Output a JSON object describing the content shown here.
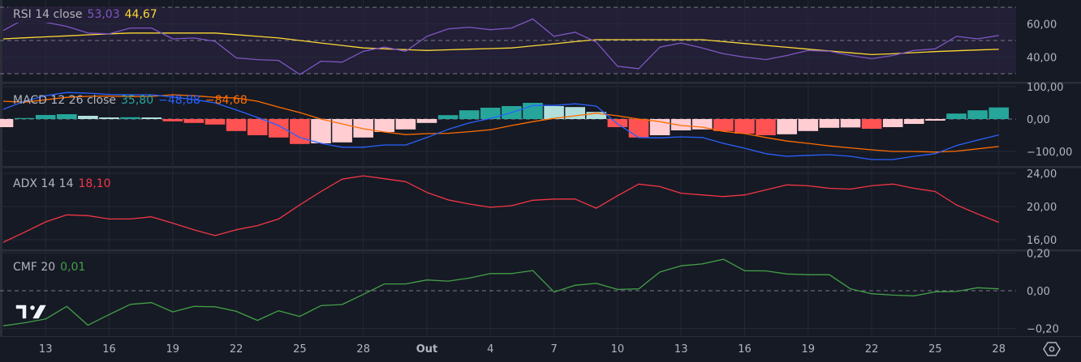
{
  "colors": {
    "background": "#161a25",
    "rsi_band": "#221f36",
    "rsi": "#7e57c2",
    "rsi_ma": "#fdd835",
    "macd": "#2962ff",
    "signal": "#ff6d00",
    "hist_up_strong": "#26a69a",
    "hist_up_weak": "#b2dfdb",
    "hist_down_strong": "#ff5252",
    "hist_down_weak": "#ffcdd2",
    "adx": "#f23645",
    "cmf": "#43a047"
  },
  "x_ticks": [
    {
      "label": "13",
      "index": 2
    },
    {
      "label": "16",
      "index": 5
    },
    {
      "label": "19",
      "index": 8
    },
    {
      "label": "22",
      "index": 11
    },
    {
      "label": "25",
      "index": 14
    },
    {
      "label": "28",
      "index": 17
    },
    {
      "label": "Out",
      "index": 20,
      "bold": true
    },
    {
      "label": "4",
      "index": 23
    },
    {
      "label": "7",
      "index": 26
    },
    {
      "label": "10",
      "index": 29
    },
    {
      "label": "13",
      "index": 32
    },
    {
      "label": "16",
      "index": 35
    },
    {
      "label": "19",
      "index": 38
    },
    {
      "label": "22",
      "index": 41
    },
    {
      "label": "25",
      "index": 44
    },
    {
      "label": "28",
      "index": 47
    }
  ],
  "chart_data": [
    {
      "type": "line",
      "legend": {
        "name": "RSI 14 close",
        "value": "53,03",
        "ma_value": "44,67"
      },
      "bands": [
        30,
        50,
        70
      ],
      "ylim": [
        30,
        70
      ],
      "y_ticks": [
        {
          "value": 60,
          "label": "60,00"
        },
        {
          "value": 40,
          "label": "40,00"
        }
      ],
      "series": [
        {
          "key": "rsi",
          "values": [
            56,
            63,
            61,
            58.5,
            54.5,
            54,
            57.5,
            57.5,
            51,
            51.5,
            49.5,
            39.5,
            38.5,
            38,
            29.5,
            37.5,
            37,
            43.5,
            46,
            43.5,
            52.5,
            57,
            58,
            56.5,
            57.5,
            63,
            52.5,
            55,
            49,
            34.5,
            33,
            46,
            48.5,
            45.5,
            42,
            40,
            38.5,
            41,
            44,
            43.5,
            41,
            39,
            41,
            44,
            45,
            52.5,
            51,
            53.03
          ]
        },
        {
          "key": "rsi_ma",
          "values": [
            51,
            51.6,
            52.2,
            52.8,
            53.4,
            54,
            54.5,
            54.5,
            54.5,
            54.5,
            54.5,
            53.5,
            52.5,
            51.5,
            50,
            48.5,
            47,
            45.5,
            45,
            44.5,
            44,
            44.4,
            44.8,
            45.1,
            45.5,
            46.8,
            48,
            49.3,
            50.5,
            50.5,
            50.5,
            50.5,
            50.5,
            50.5,
            49.3,
            48.2,
            47,
            45.9,
            44.8,
            43.7,
            42.6,
            41.5,
            42,
            42.7,
            43.3,
            43.8,
            44.3,
            44.67
          ]
        }
      ]
    },
    {
      "type": "bar+line",
      "legend": {
        "name": "MACD 12 26 close",
        "hist": "35,80",
        "macd": "−48,88",
        "signal": "−84,68"
      },
      "ylim": [
        -150,
        110
      ],
      "y_ticks": [
        {
          "value": 100,
          "label": "100,00"
        },
        {
          "value": 0,
          "label": "0,00"
        },
        {
          "value": -100,
          "label": "−100,00"
        }
      ],
      "histogram": [
        -25,
        3,
        12.5,
        15,
        10,
        5,
        5.5,
        5,
        -7,
        -12,
        -17,
        -37,
        -50,
        -57,
        -77,
        -75,
        -72,
        -57,
        -40,
        -32,
        -12,
        12,
        27,
        35,
        40,
        50,
        40,
        37,
        22,
        -25,
        -57,
        -50,
        -35,
        -32,
        -37,
        -45,
        -50,
        -47,
        -37,
        -27,
        -26,
        -30,
        -25,
        -15,
        -5,
        17,
        27,
        35.8
      ],
      "macd": [
        30,
        55,
        72,
        82,
        80,
        76,
        75,
        75,
        68,
        60,
        50,
        28,
        5,
        -20,
        -57,
        -75,
        -87,
        -87,
        -80,
        -80,
        -57,
        -32,
        -12,
        2,
        20,
        42,
        42,
        47,
        40,
        -15,
        -57,
        -58,
        -55,
        -57,
        -75,
        -90,
        -107,
        -115,
        -112,
        -110,
        -115,
        -125,
        -125,
        -115,
        -107,
        -82,
        -65,
        -48.88
      ],
      "signal": [
        55,
        52,
        59.5,
        67,
        70,
        71,
        69.5,
        70,
        75,
        72,
        67,
        65,
        55,
        37,
        20,
        0,
        -15,
        -30,
        -40,
        -48,
        -45,
        -44,
        -39,
        -33,
        -20,
        -8,
        2,
        10,
        18,
        10,
        0,
        -8,
        -20,
        -25,
        -38,
        -45,
        -57,
        -68,
        -75,
        -83,
        -89,
        -95,
        -100,
        -100,
        -102,
        -99,
        -92,
        -84.68
      ]
    },
    {
      "type": "line",
      "legend": {
        "name": "ADX 14 14",
        "value": "18,10"
      },
      "ylim": [
        14.6,
        24.8
      ],
      "y_ticks": [
        {
          "value": 24,
          "label": "24,00"
        },
        {
          "value": 20,
          "label": "20,00"
        },
        {
          "value": 16,
          "label": "16,00"
        }
      ],
      "values": [
        15.7,
        16.9,
        18.15,
        19,
        18.9,
        18.5,
        18.5,
        18.76,
        18,
        17.2,
        16.5,
        17.2,
        17.7,
        18.5,
        20.2,
        21.8,
        23.3,
        23.7,
        23.35,
        23,
        21.7,
        20.8,
        20.3,
        19.9,
        20.1,
        20.75,
        20.9,
        20.9,
        19.8,
        21.3,
        22.7,
        22.4,
        21.6,
        21.4,
        21.2,
        21.4,
        22,
        22.6,
        22.5,
        22.2,
        22.1,
        22.5,
        22.7,
        22.2,
        21.8,
        20.2,
        19.1,
        18.1
      ]
    },
    {
      "type": "line",
      "legend": {
        "name": "CMF 20",
        "value": "0,01"
      },
      "ylim": [
        -0.23,
        0.22
      ],
      "zero_line": true,
      "y_ticks": [
        {
          "value": 0.2,
          "label": "0,20"
        },
        {
          "value": 0,
          "label": "0,00"
        },
        {
          "value": -0.2,
          "label": "−0,20"
        }
      ],
      "values": [
        -0.186,
        -0.17,
        -0.15,
        -0.083,
        -0.183,
        -0.126,
        -0.072,
        -0.063,
        -0.112,
        -0.083,
        -0.085,
        -0.109,
        -0.157,
        -0.106,
        -0.136,
        -0.079,
        -0.073,
        -0.019,
        0.036,
        0.036,
        0.057,
        0.051,
        0.067,
        0.091,
        0.091,
        0.107,
        -0.007,
        0.029,
        0.039,
        0.007,
        0.01,
        0.099,
        0.132,
        0.142,
        0.167,
        0.106,
        0.105,
        0.089,
        0.085,
        0.085,
        0.01,
        -0.016,
        -0.023,
        -0.027,
        -0.006,
        -0.004,
        0.016,
        0.01
      ]
    }
  ]
}
